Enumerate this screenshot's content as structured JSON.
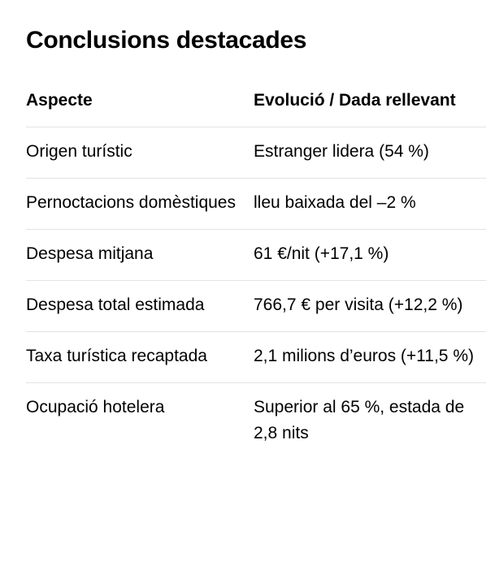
{
  "title": "Conclusions destacades",
  "table": {
    "headers": [
      "Aspecte",
      "Evolució / Dada rellevant"
    ],
    "rows": [
      [
        "Origen turístic",
        "Estranger lidera (54 %)"
      ],
      [
        "Pernoctacions domèstiques",
        "lleu baixada del –2 %"
      ],
      [
        "Despesa mitjana",
        "61 €/nit (+17,1 %)"
      ],
      [
        "Despesa total estimada",
        "766,7 € per visita (+12,2 %)"
      ],
      [
        "Taxa turística recaptada",
        "2,1 milions d’euros (+11,5 %)"
      ],
      [
        "Ocupació hotelera",
        "Superior al 65 %, estada de 2,8 nits"
      ]
    ]
  }
}
